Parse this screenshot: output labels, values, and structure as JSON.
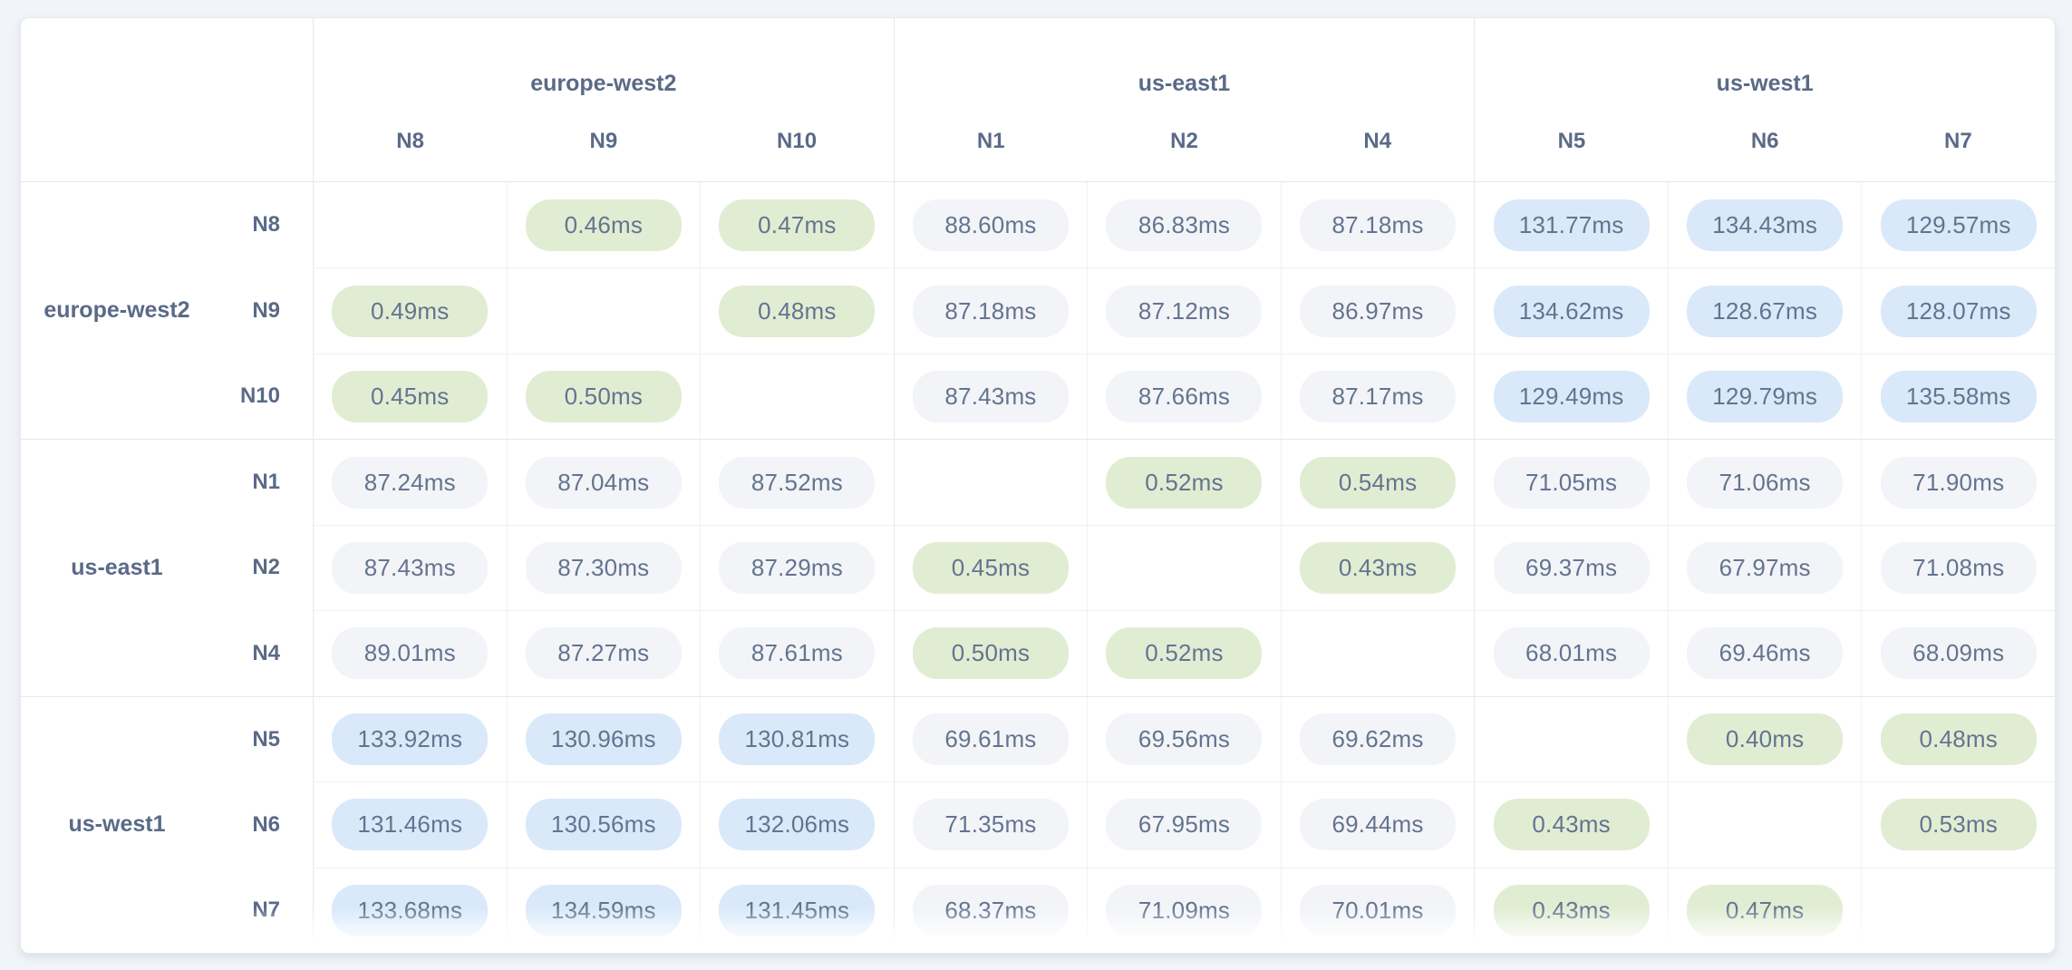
{
  "colors": {
    "page_background": "#f1f4f8",
    "card_background": "#ffffff",
    "intra_region_pill_green": "#e1edd3",
    "cross_country_pill_blue": "#d9e9fa",
    "mid_latency_pill_gray": "#f2f4f8",
    "header_text": "#5a6a87",
    "cell_text": "#64748f"
  },
  "matrix": {
    "unit_suffix": "ms",
    "column_groups": [
      {
        "region": "europe-west2",
        "nodes": [
          "N8",
          "N9",
          "N10"
        ]
      },
      {
        "region": "us-east1",
        "nodes": [
          "N1",
          "N2",
          "N4"
        ]
      },
      {
        "region": "us-west1",
        "nodes": [
          "N5",
          "N6",
          "N7"
        ]
      }
    ],
    "row_groups": [
      {
        "region": "europe-west2",
        "nodes": [
          "N8",
          "N9",
          "N10"
        ]
      },
      {
        "region": "us-east1",
        "nodes": [
          "N1",
          "N2",
          "N4"
        ]
      },
      {
        "region": "us-west1",
        "nodes": [
          "N5",
          "N6",
          "N7"
        ]
      }
    ],
    "rows": [
      {
        "node": "N8",
        "cells": [
          null,
          "0.46ms",
          "0.47ms",
          "88.60ms",
          "86.83ms",
          "87.18ms",
          "131.77ms",
          "134.43ms",
          "129.57ms"
        ]
      },
      {
        "node": "N9",
        "cells": [
          "0.49ms",
          null,
          "0.48ms",
          "87.18ms",
          "87.12ms",
          "86.97ms",
          "134.62ms",
          "128.67ms",
          "128.07ms"
        ]
      },
      {
        "node": "N10",
        "cells": [
          "0.45ms",
          "0.50ms",
          null,
          "87.43ms",
          "87.66ms",
          "87.17ms",
          "129.49ms",
          "129.79ms",
          "135.58ms"
        ]
      },
      {
        "node": "N1",
        "cells": [
          "87.24ms",
          "87.04ms",
          "87.52ms",
          null,
          "0.52ms",
          "0.54ms",
          "71.05ms",
          "71.06ms",
          "71.90ms"
        ]
      },
      {
        "node": "N2",
        "cells": [
          "87.43ms",
          "87.30ms",
          "87.29ms",
          "0.45ms",
          null,
          "0.43ms",
          "69.37ms",
          "67.97ms",
          "71.08ms"
        ]
      },
      {
        "node": "N4",
        "cells": [
          "89.01ms",
          "87.27ms",
          "87.61ms",
          "0.50ms",
          "0.52ms",
          null,
          "68.01ms",
          "69.46ms",
          "68.09ms"
        ]
      },
      {
        "node": "N5",
        "cells": [
          "133.92ms",
          "130.96ms",
          "130.81ms",
          "69.61ms",
          "69.56ms",
          "69.62ms",
          null,
          "0.40ms",
          "0.48ms"
        ]
      },
      {
        "node": "N6",
        "cells": [
          "131.46ms",
          "130.56ms",
          "132.06ms",
          "71.35ms",
          "67.95ms",
          "69.44ms",
          "0.43ms",
          null,
          "0.53ms"
        ]
      },
      {
        "node": "N7",
        "cells": [
          "133.68ms",
          "134.59ms",
          "131.45ms",
          "68.37ms",
          "71.09ms",
          "70.01ms",
          "0.43ms",
          "0.47ms",
          null
        ]
      }
    ]
  }
}
